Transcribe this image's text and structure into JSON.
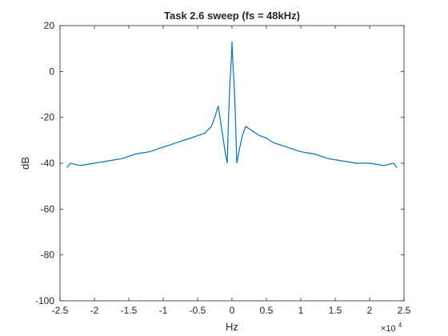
{
  "chart_data": {
    "type": "line",
    "title": "Task 2.6 sweep (fs = 48kHz)",
    "xlabel": "Hz",
    "ylabel": "dB",
    "x_exponent_label": "×10",
    "x_exponent_power": "4",
    "xlim": [
      -25000,
      25000
    ],
    "ylim": [
      -100,
      20
    ],
    "x_ticks": [
      -25000,
      -20000,
      -15000,
      -10000,
      -5000,
      0,
      5000,
      10000,
      15000,
      20000,
      25000
    ],
    "x_tick_labels": [
      "-2.5",
      "-2",
      "-1.5",
      "-1",
      "-0.5",
      "0",
      "0.5",
      "1",
      "1.5",
      "2",
      "2.5"
    ],
    "y_ticks": [
      -100,
      -80,
      -60,
      -40,
      -20,
      0,
      20
    ],
    "y_tick_labels": [
      "-100",
      "-80",
      "-60",
      "-40",
      "-20",
      "0",
      "20"
    ],
    "grid": false,
    "line_color": "#0072BD",
    "series": [
      {
        "x": [
          -24000,
          -23500,
          -22000,
          -20000,
          -18000,
          -16000,
          -14000,
          -12000,
          -10000,
          -8000,
          -6000,
          -5000,
          -4000,
          -3000,
          -2500,
          -2000,
          -1500,
          -1000,
          -700,
          -500,
          -300,
          -100,
          0,
          100,
          300,
          500,
          700,
          1000,
          1500,
          2000,
          3000,
          4000,
          5000,
          6000,
          8000,
          10000,
          12000,
          14000,
          16000,
          18000,
          20000,
          22000,
          23500,
          24000
        ],
        "y": [
          -42,
          -40,
          -41,
          -40,
          -39,
          -38,
          -36,
          -35,
          -33,
          -31,
          -29,
          -28,
          -27,
          -24,
          -20,
          -15,
          -25,
          -35,
          -40,
          -20,
          -5,
          5,
          13,
          5,
          -5,
          -20,
          -40,
          -35,
          -28,
          -24,
          -26,
          -28,
          -29,
          -31,
          -33,
          -35,
          -36,
          -38,
          -39,
          -40,
          -40,
          -41,
          -40,
          -42
        ]
      }
    ]
  }
}
